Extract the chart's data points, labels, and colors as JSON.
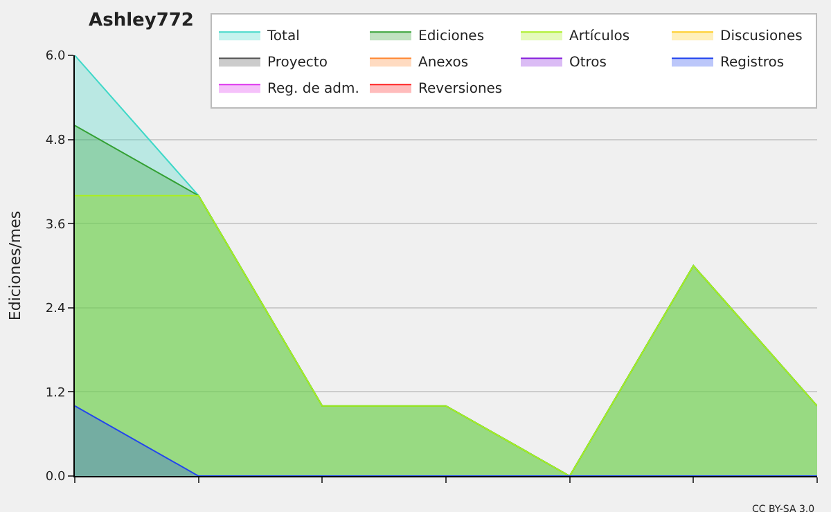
{
  "chart_data": {
    "type": "area",
    "title": "Ashley772",
    "ylabel": "Ediciones/mes",
    "categories": [
      null,
      null,
      null,
      null,
      null,
      null,
      null
    ],
    "series": [
      {
        "name": "Total",
        "color": "#40d8c8",
        "values": [
          6,
          4,
          1,
          1,
          0,
          3,
          1
        ]
      },
      {
        "name": "Ediciones",
        "color": "#33a033",
        "values": [
          5,
          4,
          1,
          1,
          0,
          3,
          1
        ]
      },
      {
        "name": "Artículos",
        "color": "#aaee22",
        "values": [
          4,
          4,
          1,
          1,
          0,
          3,
          1
        ]
      },
      {
        "name": "Discusiones",
        "color": "#ffcc22",
        "values": [
          null,
          null,
          null,
          null,
          null,
          null,
          null
        ]
      },
      {
        "name": "Proyecto",
        "color": "#555555",
        "values": [
          null,
          null,
          null,
          null,
          null,
          null,
          null
        ]
      },
      {
        "name": "Anexos",
        "color": "#ff8833",
        "values": [
          null,
          null,
          null,
          null,
          null,
          null,
          null
        ]
      },
      {
        "name": "Otros",
        "color": "#8822dd",
        "values": [
          null,
          null,
          null,
          null,
          null,
          null,
          null
        ]
      },
      {
        "name": "Registros",
        "color": "#2244ee",
        "values": [
          1,
          0,
          0,
          0,
          0,
          0,
          0
        ]
      },
      {
        "name": "Reg. de adm.",
        "color": "#dd33ee",
        "values": [
          null,
          null,
          null,
          null,
          null,
          null,
          null
        ]
      },
      {
        "name": "Reversiones",
        "color": "#ff2222",
        "values": [
          null,
          null,
          null,
          null,
          null,
          null,
          null
        ]
      }
    ],
    "ylim": [
      0,
      6
    ],
    "yticks": [
      {
        "value": 0,
        "label": "0.0"
      },
      {
        "value": 1.2,
        "label": "1.2"
      },
      {
        "value": 2.4,
        "label": "2.4"
      },
      {
        "value": 3.6,
        "label": "3.6"
      },
      {
        "value": 4.8,
        "label": "4.8"
      },
      {
        "value": 6,
        "label": "6.0"
      }
    ],
    "grid": "y",
    "legend": "top right",
    "annotations": [
      "CC BY-SA 3.0"
    ]
  }
}
